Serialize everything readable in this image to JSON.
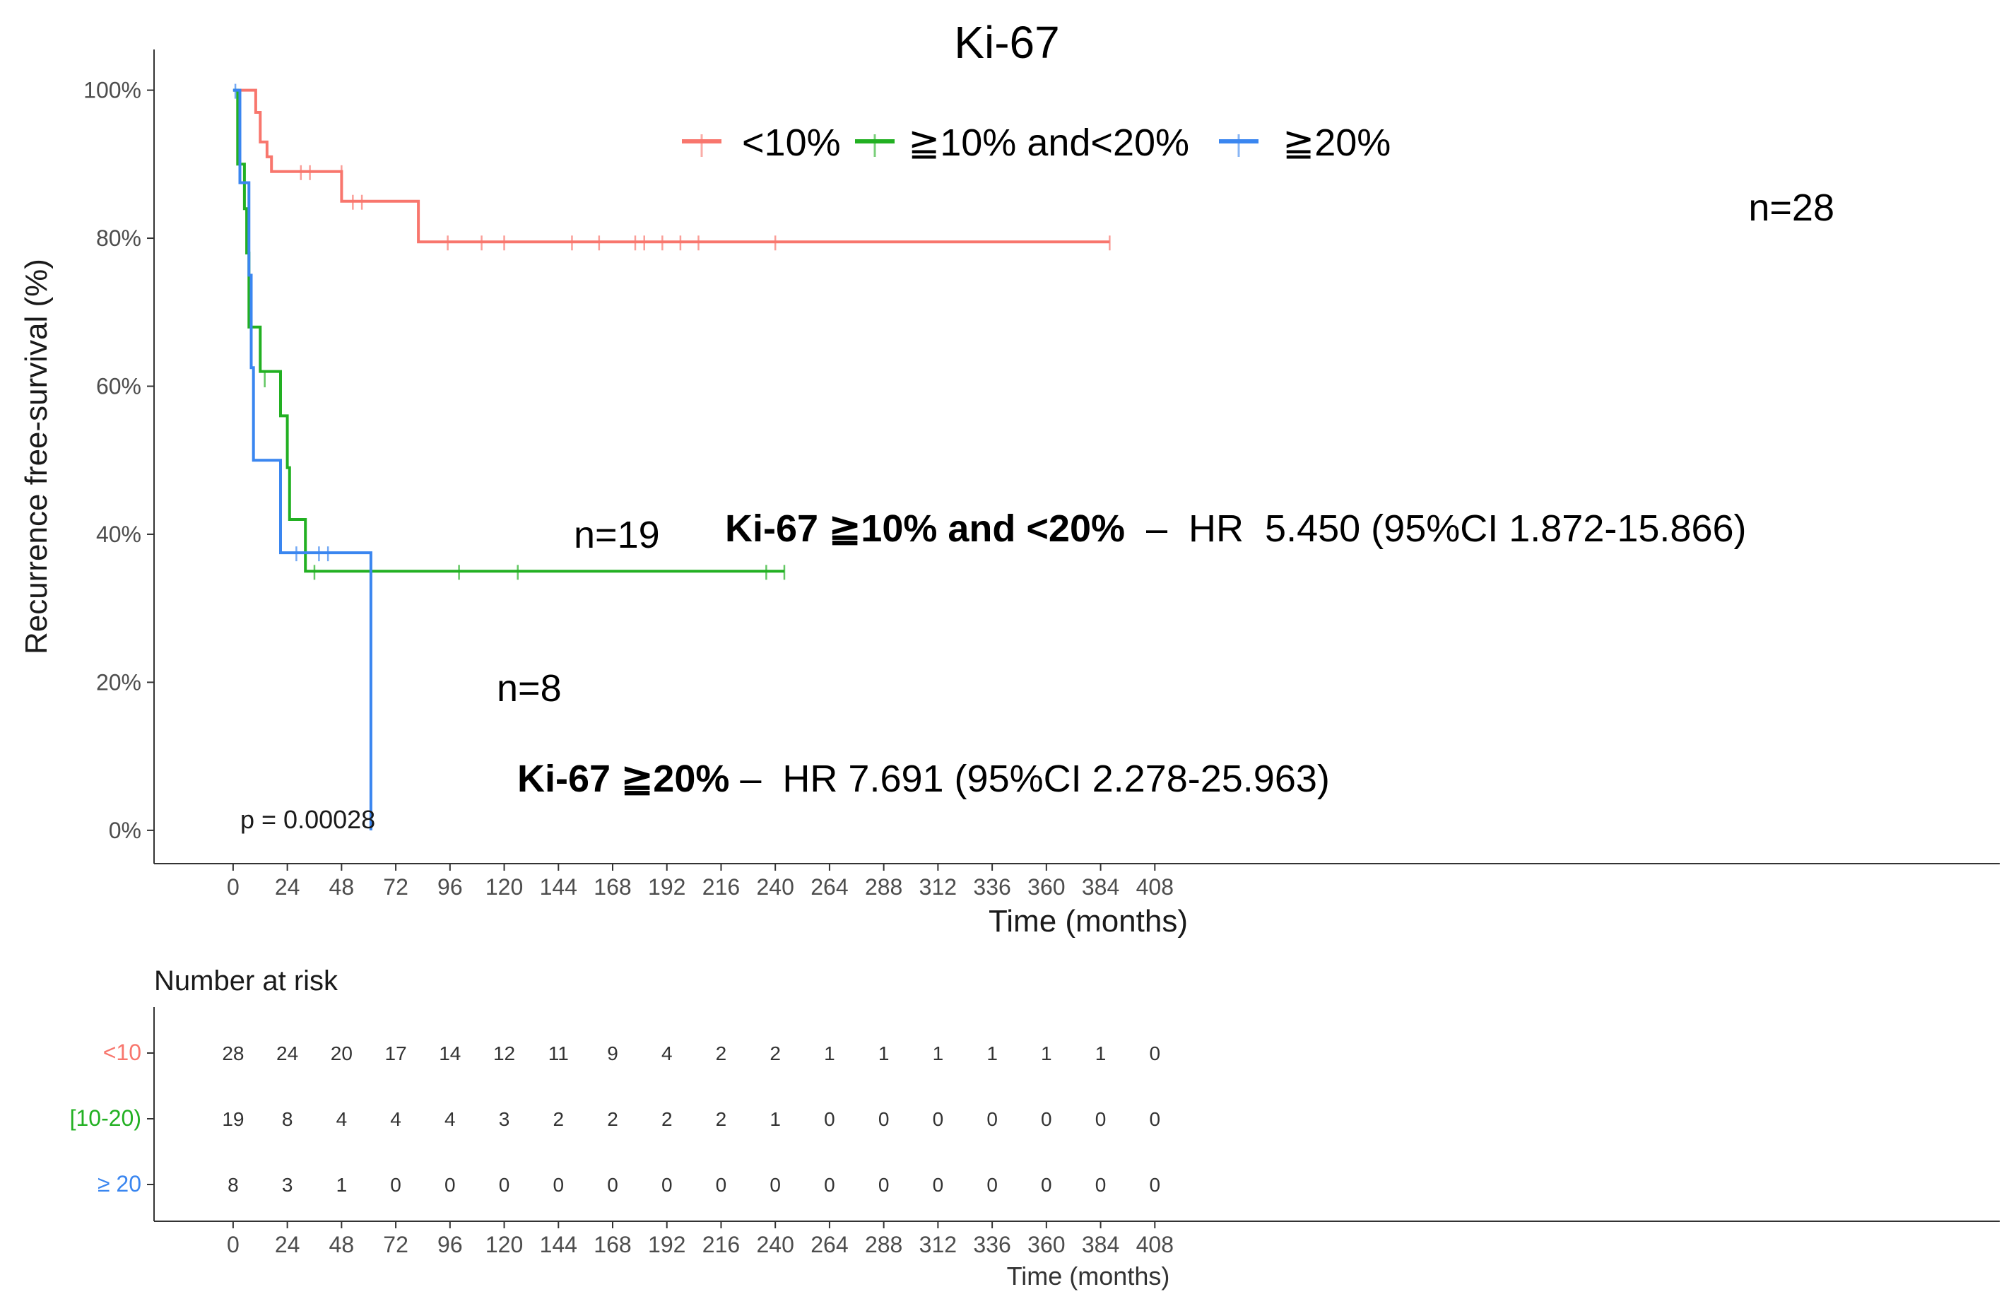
{
  "chart_data": {
    "type": "line",
    "subtype": "kaplan-meier",
    "title": "Ki-67",
    "ylabel": "Recurrence free-survival (%)",
    "xlabel": "Time (months)",
    "xlim": [
      -35,
      782
    ],
    "ylim": [
      -0.045,
      1.055
    ],
    "x_ticks": [
      0,
      24,
      48,
      72,
      96,
      120,
      144,
      168,
      192,
      216,
      240,
      264,
      288,
      312,
      336,
      360,
      384,
      408
    ],
    "y_ticks": [
      0,
      0.2,
      0.4,
      0.6,
      0.8,
      1.0
    ],
    "y_tick_labels": [
      "0%",
      "20%",
      "40%",
      "60%",
      "80%",
      "100%"
    ],
    "grid": false,
    "legend_position": "top",
    "legend_entries": [
      "<10%",
      "≧10% and<20%",
      "≧20%"
    ],
    "p_value_text": "p = 0.00028",
    "series": [
      {
        "name": "<10%",
        "color": "#F8766D",
        "points": [
          [
            0,
            1.0
          ],
          [
            10,
            1.0
          ],
          [
            10,
            0.97
          ],
          [
            12,
            0.97
          ],
          [
            12,
            0.93
          ],
          [
            15,
            0.93
          ],
          [
            15,
            0.91
          ],
          [
            17,
            0.91
          ],
          [
            17,
            0.89
          ],
          [
            48,
            0.89
          ],
          [
            48,
            0.85
          ],
          [
            82,
            0.85
          ],
          [
            82,
            0.795
          ],
          [
            388,
            0.795
          ]
        ],
        "censors": [
          [
            30,
            0.89
          ],
          [
            34,
            0.89
          ],
          [
            48,
            0.89
          ],
          [
            53,
            0.85
          ],
          [
            57,
            0.85
          ],
          [
            95,
            0.795
          ],
          [
            110,
            0.795
          ],
          [
            120,
            0.795
          ],
          [
            150,
            0.795
          ],
          [
            162,
            0.795
          ],
          [
            178,
            0.795
          ],
          [
            182,
            0.795
          ],
          [
            190,
            0.795
          ],
          [
            198,
            0.795
          ],
          [
            206,
            0.795
          ],
          [
            240,
            0.795
          ],
          [
            388,
            0.795
          ]
        ]
      },
      {
        "name": "≧10% and<20%",
        "color": "#22B022",
        "points": [
          [
            0,
            1.0
          ],
          [
            2,
            1.0
          ],
          [
            2,
            0.9
          ],
          [
            5,
            0.9
          ],
          [
            5,
            0.84
          ],
          [
            6,
            0.84
          ],
          [
            6,
            0.78
          ],
          [
            7,
            0.78
          ],
          [
            7,
            0.68
          ],
          [
            12,
            0.68
          ],
          [
            12,
            0.62
          ],
          [
            21,
            0.62
          ],
          [
            21,
            0.56
          ],
          [
            24,
            0.56
          ],
          [
            24,
            0.49
          ],
          [
            25,
            0.49
          ],
          [
            25,
            0.42
          ],
          [
            32,
            0.42
          ],
          [
            32,
            0.35
          ],
          [
            244,
            0.35
          ]
        ],
        "censors": [
          [
            14,
            0.61
          ],
          [
            36,
            0.35
          ],
          [
            100,
            0.35
          ],
          [
            126,
            0.35
          ],
          [
            236,
            0.35
          ],
          [
            244,
            0.35
          ]
        ]
      },
      {
        "name": "≧20%",
        "color": "#3A86F0",
        "points": [
          [
            0,
            1.0
          ],
          [
            3,
            1.0
          ],
          [
            3,
            0.875
          ],
          [
            7,
            0.875
          ],
          [
            7,
            0.75
          ],
          [
            8,
            0.75
          ],
          [
            8,
            0.625
          ],
          [
            9,
            0.625
          ],
          [
            9,
            0.5
          ],
          [
            21,
            0.5
          ],
          [
            21,
            0.375
          ],
          [
            61,
            0.375
          ],
          [
            61,
            0.0
          ]
        ],
        "censors": [
          [
            1,
            1.0
          ],
          [
            28,
            0.375
          ],
          [
            38,
            0.375
          ],
          [
            42,
            0.375
          ]
        ]
      }
    ],
    "annotations": [
      {
        "text": "n=28",
        "bold_part": ""
      },
      {
        "text": "n=19",
        "bold_part": ""
      },
      {
        "text": "n=8",
        "bold_part": ""
      },
      {
        "bold_part": "Ki-67 ≧10% and <20%",
        "text": "  –  HR  5.450 (95%CI 1.872-15.866)"
      },
      {
        "bold_part": "Ki-67 ≧20%",
        "text": " –  HR 7.691 (95%CI 2.278-25.963)"
      }
    ],
    "risk_table": {
      "title": "Number at risk",
      "xlabel": "Time (months)",
      "times": [
        0,
        24,
        48,
        72,
        96,
        120,
        144,
        168,
        192,
        216,
        240,
        264,
        288,
        312,
        336,
        360,
        384,
        408
      ],
      "rows": [
        {
          "label": "<10",
          "color": "#F8766D",
          "values": [
            28,
            24,
            20,
            17,
            14,
            12,
            11,
            9,
            4,
            2,
            2,
            1,
            1,
            1,
            1,
            1,
            1,
            0
          ]
        },
        {
          "label": "[10-20)",
          "color": "#22B022",
          "values": [
            19,
            8,
            4,
            4,
            4,
            3,
            2,
            2,
            2,
            2,
            1,
            0,
            0,
            0,
            0,
            0,
            0,
            0
          ]
        },
        {
          "label": "≥ 20",
          "color": "#3A86F0",
          "values": [
            8,
            3,
            1,
            0,
            0,
            0,
            0,
            0,
            0,
            0,
            0,
            0,
            0,
            0,
            0,
            0,
            0,
            0
          ]
        }
      ]
    }
  }
}
